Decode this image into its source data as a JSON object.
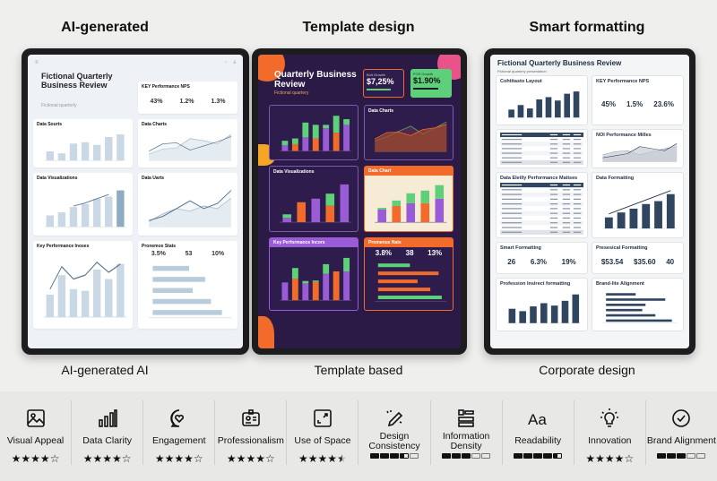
{
  "columns": [
    {
      "title": "AI-generated",
      "caption": "AI-generated AI"
    },
    {
      "title": "Template design",
      "caption": "Template based"
    },
    {
      "title": "Smart formatting",
      "caption": "Corporate design"
    }
  ],
  "colors": {
    "light_bar": "#c9d8e4",
    "light_line": "#5b7387",
    "dark_orange": "#f26b2a",
    "dark_green": "#5fd07a",
    "dark_purple": "#9a5bd6",
    "corp_navy": "#2f4560",
    "corp_grey": "#c7ccd4"
  },
  "light": {
    "title": "Fictional Quarterly Business Review",
    "subtitle": "Fictional quarterly",
    "panels": [
      {
        "title": "KEY Performance NPS",
        "kpis": [
          {
            "value": "43%"
          },
          {
            "value": "1.2%"
          },
          {
            "value": "1.3%"
          }
        ]
      },
      {
        "title": "Data Sourts",
        "chart": {
          "type": "bar",
          "values": [
            700,
            550,
            1300,
            1400,
            1200,
            1800,
            2000
          ]
        }
      },
      {
        "title": "Data Charts",
        "chart": {
          "type": "line",
          "series": [
            [
              300,
              550,
              600,
              1050,
              950,
              800,
              1250
            ],
            [
              450,
              800,
              850,
              500,
              700,
              900,
              1150
            ]
          ]
        }
      },
      {
        "title": "Data Visualizations",
        "chart": {
          "type": "barline",
          "values": [
            110,
            140,
            190,
            220,
            270,
            290,
            350
          ],
          "line": [
            null,
            null,
            200,
            230,
            270,
            310,
            null
          ]
        }
      },
      {
        "title": "Data Uarts",
        "chart": {
          "type": "line",
          "series": [
            [
              200,
              500,
              700,
              600,
              800,
              700,
              1100
            ],
            [
              250,
              400,
              700,
              1000,
              700,
              900,
              1400
            ]
          ]
        }
      },
      {
        "title": "Key Performance Inoses",
        "chart": {
          "type": "barline",
          "values": [
            40,
            75,
            50,
            47,
            85,
            68,
            95
          ],
          "line": [
            50,
            90,
            68,
            75,
            98,
            80,
            95
          ]
        }
      },
      {
        "title": "Pronemos Stats",
        "kpis": [
          {
            "value": "3.5%"
          },
          {
            "value": "53"
          },
          {
            "value": "10%"
          }
        ],
        "chart": {
          "type": "hbar",
          "values": [
            50,
            72,
            55,
            80,
            95
          ]
        }
      }
    ]
  },
  "template": {
    "title": "Quarterly Business Review",
    "subtitle": "Fictional quartery",
    "cards": [
      {
        "label": "Bolt Growth",
        "value": "$7,25%"
      },
      {
        "label": "FOS Growth",
        "value": "$1.90%"
      }
    ],
    "panels": [
      {
        "title": "",
        "chart": {
          "type": "stack",
          "a": [
            50,
            60,
            120,
            110,
            200,
            160,
            230
          ],
          "b": [
            40,
            50,
            130,
            120,
            30,
            150,
            50
          ]
        }
      },
      {
        "title": "Data Charts",
        "chart": {
          "type": "area",
          "series": [
            [
              250,
              350,
              480,
              600,
              420,
              550,
              700
            ],
            [
              300,
              450,
              460,
              380,
              520,
              560,
              640
            ]
          ]
        }
      },
      {
        "title": "Data Visualizations",
        "chart": {
          "type": "stack",
          "a": [
            60,
            280,
            330,
            230,
            530
          ],
          "b": [
            50,
            0,
            0,
            170,
            0
          ]
        }
      },
      {
        "title": "Data Chart",
        "chart": {
          "type": "stack",
          "a": [
            280,
            360,
            420,
            420,
            520
          ],
          "b": [
            40,
            120,
            220,
            280,
            300
          ]
        }
      },
      {
        "title": "Key Performance Incors",
        "chart": {
          "type": "stack",
          "a": [
            37,
            45,
            35,
            38,
            55,
            60,
            60
          ],
          "b": [
            0,
            22,
            5,
            3,
            20,
            0,
            28
          ]
        }
      },
      {
        "title": "Promenus Nats",
        "kpis": [
          {
            "value": "3.8%"
          },
          {
            "value": "38"
          },
          {
            "value": "13%"
          }
        ],
        "chart": {
          "type": "hbar",
          "values": [
            50,
            95,
            62,
            82,
            100
          ]
        }
      }
    ]
  },
  "corporate": {
    "title": "Fictional Quarterly Business Review",
    "subtitle": "Fictional quarterly presentation",
    "panels": [
      {
        "title": "Cohtitasto Layout",
        "chart": {
          "type": "bar",
          "values": [
            700,
            1100,
            800,
            1600,
            1800,
            1500,
            2100,
            2300
          ]
        }
      },
      {
        "title": "KEY Performance NPS",
        "kpis": [
          {
            "value": "45%"
          },
          {
            "value": "1.5%"
          },
          {
            "value": "23.6%"
          }
        ]
      },
      {
        "title": "",
        "chart": {
          "type": "table",
          "rows": 7
        }
      },
      {
        "title": "NOI Performance Milles",
        "chart": {
          "type": "area",
          "series": [
            [
              700,
              1000,
              1100,
              700,
              1000,
              1300,
              1500
            ],
            [
              400,
              600,
              800,
              1500,
              1300,
              1100,
              1800
            ]
          ]
        }
      },
      {
        "title": "Data Eleilly Performance Matises",
        "chart": {
          "type": "table",
          "rows": 11
        }
      },
      {
        "title": "Data Formatting",
        "chart": {
          "type": "barline",
          "values": [
            380,
            550,
            680,
            840,
            940,
            1180
          ],
          "line": [
            500,
            null,
            null,
            null,
            null,
            1300
          ]
        }
      },
      {
        "title": "Smart Formatting",
        "kpis": [
          {
            "value": "26"
          },
          {
            "value": "6.3%"
          },
          {
            "value": "19%"
          }
        ]
      },
      {
        "title": "Presesical Formatting",
        "kpis": [
          {
            "value": "$53.54"
          },
          {
            "value": "$35.60"
          },
          {
            "value": "40"
          }
        ]
      },
      {
        "title": "Profession Insirect formatting",
        "chart": {
          "type": "bar",
          "values": [
            90,
            75,
            105,
            125,
            110,
            140,
            180
          ]
        }
      },
      {
        "title": "Brand-lite Alignment",
        "chart": {
          "type": "hbar",
          "values": [
            45,
            90,
            60,
            55,
            75,
            100
          ]
        }
      }
    ]
  },
  "ratings": [
    {
      "label": "Visual Appeal",
      "icon": "image-icon",
      "style": "stars",
      "score": 4
    },
    {
      "label": "Data Clarity",
      "icon": "bar-chart-icon",
      "style": "stars",
      "score": 4
    },
    {
      "label": "Engagement",
      "icon": "heart-chat-icon",
      "style": "stars",
      "score": 4
    },
    {
      "label": "Professionalism",
      "icon": "id-badge-icon",
      "style": "stars",
      "score": 4
    },
    {
      "label": "Use of Space",
      "icon": "expand-icon",
      "style": "stars",
      "score": 4.5
    },
    {
      "label": "Design Consistency",
      "icon": "pencil-sparkle-icon",
      "style": "blocks",
      "score": 3.5
    },
    {
      "label": "Information Density",
      "icon": "layout-icon",
      "style": "blocks",
      "score": 3
    },
    {
      "label": "Readability",
      "icon": "text-aa-icon",
      "style": "blocks",
      "score": 4.5
    },
    {
      "label": "Innovation",
      "icon": "lightbulb-icon",
      "style": "stars",
      "score": 4
    },
    {
      "label": "Brand Alignment",
      "icon": "check-circle-icon",
      "style": "blocks",
      "score": 3
    }
  ]
}
